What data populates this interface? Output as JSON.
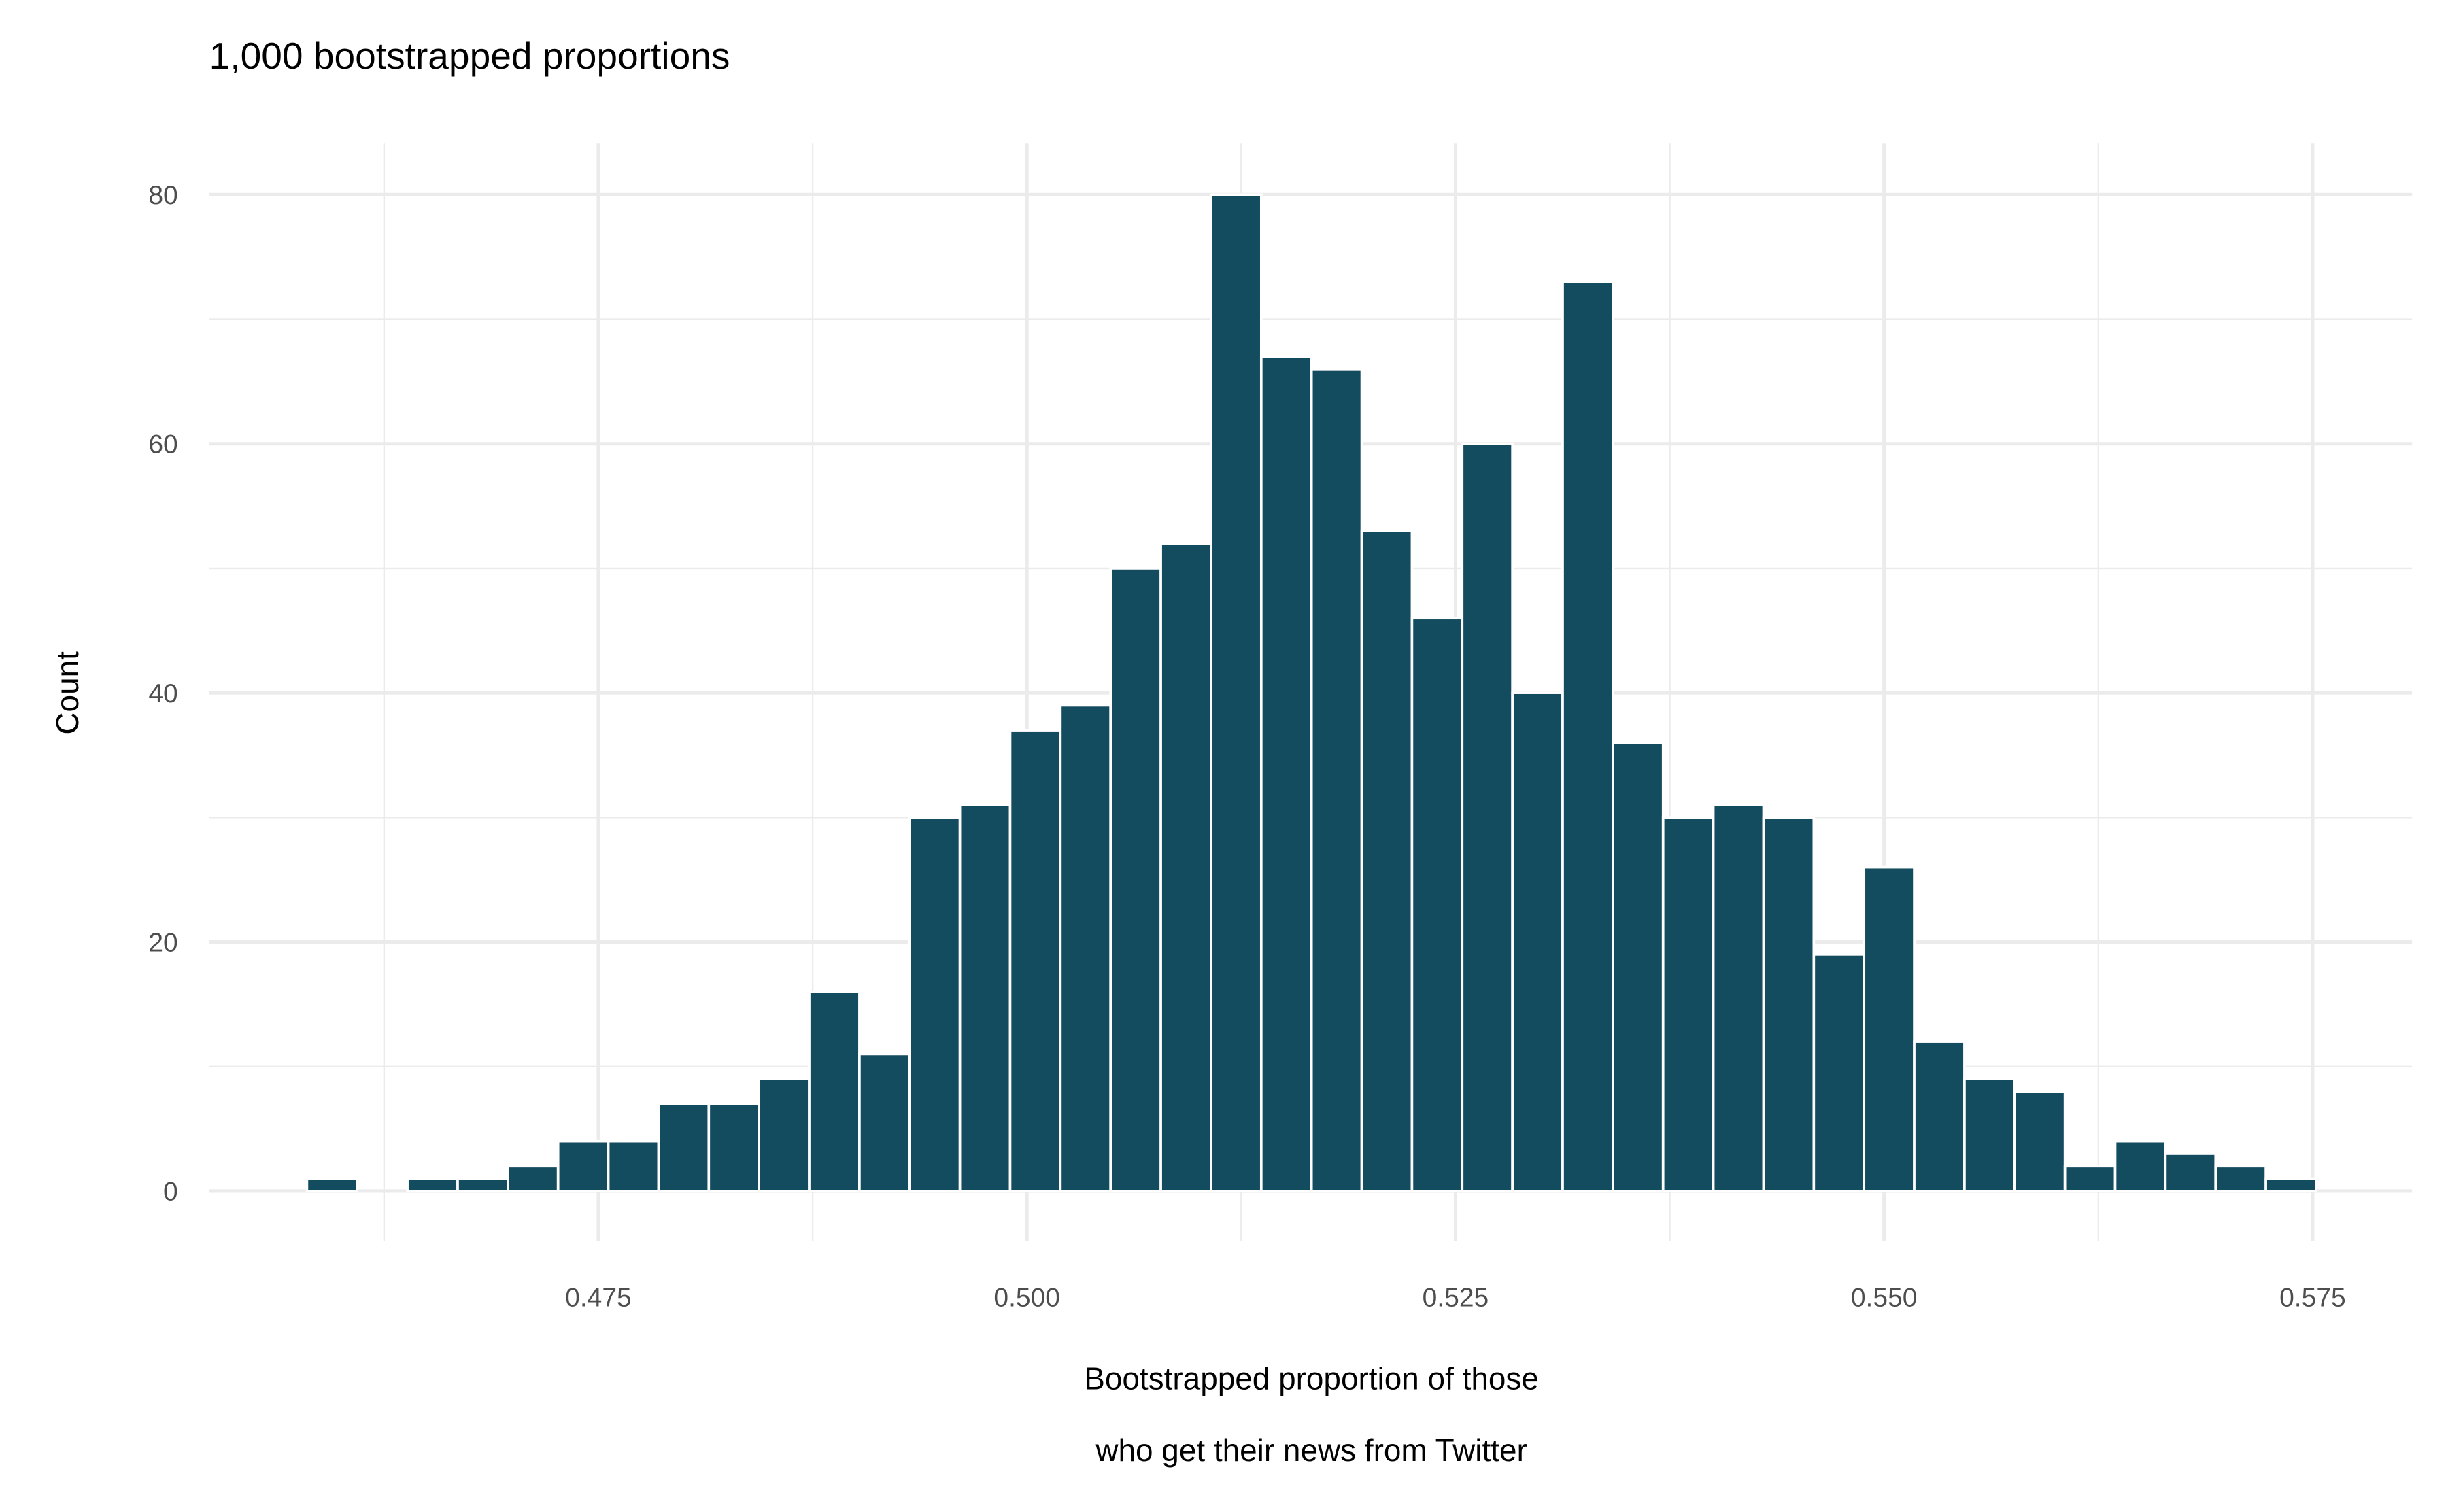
{
  "chart_data": {
    "type": "histogram",
    "title": "1,000 bootstrapped proportions",
    "xlabel": [
      "Bootstrapped proportion of those",
      "who get their news from Twitter"
    ],
    "ylabel": "Count",
    "color": "#134b5f",
    "bins": [
      0.458,
      0.46093,
      0.46386,
      0.46679,
      0.46972,
      0.47265,
      0.47558,
      0.47851,
      0.48144,
      0.48437,
      0.4873,
      0.49023,
      0.49316,
      0.49609,
      0.49902,
      0.50195,
      0.50488,
      0.50781,
      0.51074,
      0.51367,
      0.5166,
      0.51953,
      0.52246,
      0.52539,
      0.52832,
      0.53125,
      0.53418,
      0.53711,
      0.54004,
      0.54297,
      0.5459,
      0.54883,
      0.55176,
      0.55469,
      0.55762,
      0.56055,
      0.56348,
      0.56641,
      0.56934,
      0.57227,
      0.5752
    ],
    "values": [
      1,
      0,
      1,
      1,
      2,
      4,
      4,
      7,
      7,
      9,
      16,
      11,
      30,
      31,
      37,
      39,
      50,
      52,
      80,
      67,
      66,
      53,
      46,
      60,
      40,
      73,
      36,
      30,
      31,
      30,
      19,
      26,
      12,
      9,
      8,
      2,
      4,
      3,
      2,
      1
    ],
    "xlim": [
      0.4523,
      0.5808
    ],
    "ylim": [
      -4,
      84.1
    ],
    "xticks": [
      0.475,
      {
        "value": 0.5,
        "label": "0.500"
      },
      0.525,
      {
        "value": 0.55,
        "label": "0.550"
      },
      0.575
    ],
    "yticks": [
      0,
      20,
      40,
      60,
      80
    ],
    "grid": true,
    "minor_grid": true
  }
}
